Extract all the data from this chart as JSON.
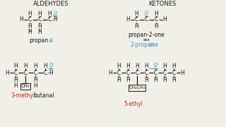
{
  "bg_color": "#f0efe8",
  "black": "#1a1a1a",
  "blue": "#4499bb",
  "red": "#cc2222",
  "aldehyde_title": "ALDEHYDES",
  "ketone_title": "KETONES",
  "propanal_label_black": "propan",
  "propanal_label_blue": "al",
  "propan2one_label": "propan-2-one",
  "propan2one_aka": "aka",
  "propan2one_blue": "2-propan",
  "propan2one_blue2": "one",
  "methyl_red": "3-methyl",
  "methyl_black": "butanal",
  "ethyl_red": "5-ethyl"
}
